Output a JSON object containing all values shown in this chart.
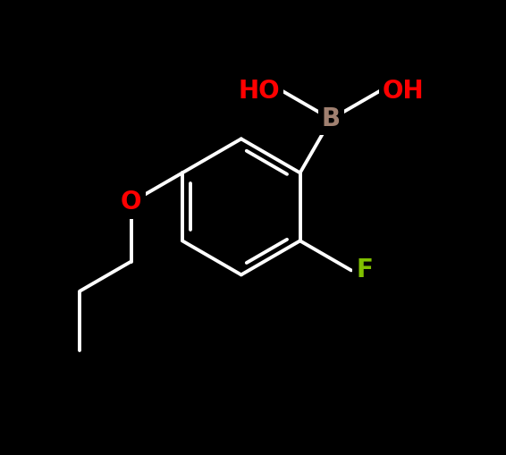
{
  "background_color": "#000000",
  "bond_color": "#ffffff",
  "bond_width": 2.8,
  "label_B": {
    "text": "B",
    "color": "#a08070",
    "fontsize": 20,
    "fontweight": "bold"
  },
  "label_OH_top": {
    "text": "OH",
    "color": "#ff0000",
    "fontsize": 20,
    "fontweight": "bold"
  },
  "label_HO": {
    "text": "HO",
    "color": "#ff0000",
    "fontsize": 20,
    "fontweight": "bold"
  },
  "label_O": {
    "text": "O",
    "color": "#ff0000",
    "fontsize": 20,
    "fontweight": "bold"
  },
  "label_F": {
    "text": "F",
    "color": "#80c000",
    "fontsize": 20,
    "fontweight": "bold"
  },
  "figsize": [
    5.66,
    5.09
  ],
  "dpi": 100
}
